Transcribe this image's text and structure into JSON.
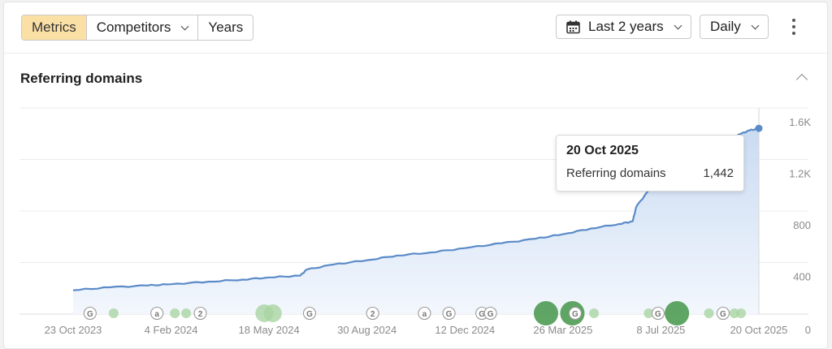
{
  "toolbar": {
    "tabs": [
      {
        "label": "Metrics",
        "active": true
      },
      {
        "label": "Competitors",
        "dropdown": true
      },
      {
        "label": "Years"
      }
    ],
    "date_range": {
      "label": "Last 2 years",
      "icon": "calendar-icon"
    },
    "granularity": {
      "label": "Daily"
    },
    "more_icon": "kebab-menu-icon"
  },
  "section": {
    "title": "Referring domains",
    "collapse_icon": "chevron-up-icon"
  },
  "tooltip": {
    "date": "20 Oct 2025",
    "metric": "Referring domains",
    "value": "1,442"
  },
  "colors": {
    "line": "#5b8bc8",
    "area_top": "#c9dbf2",
    "area_bottom": "#f3f7fd",
    "marker_light": "#a9d4a2",
    "marker_dark": "#4e9b53",
    "accent": "#fbe0a6"
  },
  "chart_data": {
    "type": "area",
    "x_ticks": [
      "23 Oct 2023",
      "4 Feb 2024",
      "18 May 2024",
      "30 Aug 2024",
      "12 Dec 2024",
      "26 Mar 2025",
      "8 Jul 2025",
      "20 Oct 2025"
    ],
    "y_ticks": [
      "0",
      "400",
      "800",
      "1.2K",
      "1.6K"
    ],
    "ylim": [
      0,
      1600
    ],
    "xlim": [
      "2023-10-23",
      "2025-10-20"
    ],
    "series": [
      {
        "points": [
          [
            "2023-10-23",
            185
          ],
          [
            "2023-12-01",
            208
          ],
          [
            "2024-01-10",
            222
          ],
          [
            "2024-02-04",
            232
          ],
          [
            "2024-03-15",
            252
          ],
          [
            "2024-04-20",
            268
          ],
          [
            "2024-05-18",
            285
          ],
          [
            "2024-06-20",
            298
          ],
          [
            "2024-06-27",
            345
          ],
          [
            "2024-07-25",
            385
          ],
          [
            "2024-08-30",
            418
          ],
          [
            "2024-10-01",
            455
          ],
          [
            "2024-11-05",
            478
          ],
          [
            "2024-12-12",
            512
          ],
          [
            "2025-01-20",
            550
          ],
          [
            "2025-02-25",
            585
          ],
          [
            "2025-03-26",
            620
          ],
          [
            "2025-04-25",
            665
          ],
          [
            "2025-05-25",
            700
          ],
          [
            "2025-06-08",
            720
          ],
          [
            "2025-06-12",
            835
          ],
          [
            "2025-06-25",
            960
          ],
          [
            "2025-07-08",
            1090
          ],
          [
            "2025-07-25",
            1180
          ],
          [
            "2025-08-20",
            1270
          ],
          [
            "2025-09-15",
            1340
          ],
          [
            "2025-10-01",
            1400
          ],
          [
            "2025-10-10",
            1425
          ],
          [
            "2025-10-20",
            1442
          ]
        ]
      }
    ],
    "annotations": [
      {
        "date": "2023-11-10",
        "type": "label",
        "text": "G"
      },
      {
        "date": "2023-12-05",
        "type": "dot",
        "size": "small",
        "shade": "light"
      },
      {
        "date": "2024-01-20",
        "type": "label",
        "text": "a"
      },
      {
        "date": "2024-02-08",
        "type": "dot",
        "size": "small",
        "shade": "light"
      },
      {
        "date": "2024-02-20",
        "type": "dot",
        "size": "small",
        "shade": "light"
      },
      {
        "date": "2024-03-06",
        "type": "label",
        "text": "2"
      },
      {
        "date": "2024-05-13",
        "type": "dot",
        "size": "large",
        "shade": "light"
      },
      {
        "date": "2024-05-22",
        "type": "dot",
        "size": "large",
        "shade": "light"
      },
      {
        "date": "2024-06-30",
        "type": "label",
        "text": "G"
      },
      {
        "date": "2024-09-05",
        "type": "label",
        "text": "2"
      },
      {
        "date": "2024-10-30",
        "type": "label",
        "text": "a"
      },
      {
        "date": "2024-11-25",
        "type": "label",
        "text": "G"
      },
      {
        "date": "2024-12-30",
        "type": "label",
        "text": "G"
      },
      {
        "date": "2025-01-08",
        "type": "label",
        "text": "G"
      },
      {
        "date": "2025-03-08",
        "type": "dot",
        "size": "xlarge",
        "shade": "dark"
      },
      {
        "date": "2025-04-05",
        "type": "dot",
        "size": "xlarge",
        "shade": "dark"
      },
      {
        "date": "2025-04-08",
        "type": "label",
        "text": "G"
      },
      {
        "date": "2025-04-28",
        "type": "dot",
        "size": "small",
        "shade": "light"
      },
      {
        "date": "2025-06-25",
        "type": "dot",
        "size": "small",
        "shade": "light"
      },
      {
        "date": "2025-07-05",
        "type": "label",
        "text": "G"
      },
      {
        "date": "2025-07-25",
        "type": "dot",
        "size": "xlarge",
        "shade": "dark"
      },
      {
        "date": "2025-08-28",
        "type": "dot",
        "size": "small",
        "shade": "light"
      },
      {
        "date": "2025-09-12",
        "type": "label",
        "text": "G"
      },
      {
        "date": "2025-09-24",
        "type": "dot",
        "size": "small",
        "shade": "light"
      },
      {
        "date": "2025-10-01",
        "type": "dot",
        "size": "small",
        "shade": "light"
      }
    ]
  }
}
